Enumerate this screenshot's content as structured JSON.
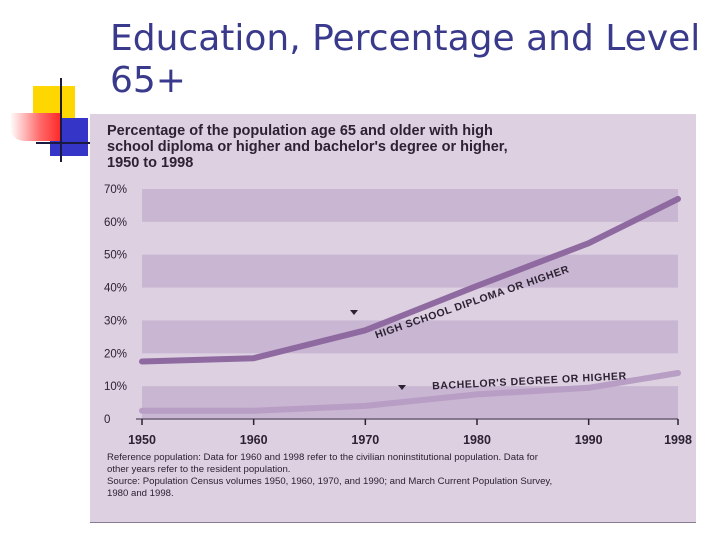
{
  "slide": {
    "title_line1": "Education, Percentage and Level",
    "title_line2": "65+"
  },
  "chart_data": {
    "type": "line",
    "title_lines": [
      "Percentage of the population age 65 and older with high",
      "school diploma or higher and bachelor's degree or higher,",
      "1950 to 1998"
    ],
    "x": [
      1950,
      1960,
      1970,
      1980,
      1990,
      1998
    ],
    "x_tick_labels": [
      "1950",
      "1960",
      "1970",
      "1980",
      "1990",
      "1998"
    ],
    "y_tick_values": [
      0,
      10,
      20,
      30,
      40,
      50,
      60,
      70
    ],
    "y_tick_labels": [
      "0",
      "10%",
      "20%",
      "30%",
      "40%",
      "50%",
      "60%",
      "70%"
    ],
    "ylim": [
      0,
      70
    ],
    "xlim": [
      1950,
      1998
    ],
    "series": [
      {
        "name": "HIGH SCHOOL DIPLOMA OR HIGHER",
        "x": [
          1950,
          1960,
          1970,
          1980,
          1990,
          1998
        ],
        "values": [
          17.5,
          18.5,
          27,
          40.5,
          53.5,
          67
        ],
        "color": "#8e6aa0"
      },
      {
        "name": "BACHELOR'S DEGREE OR HIGHER",
        "x": [
          1950,
          1960,
          1970,
          1980,
          1990,
          1998
        ],
        "values": [
          2.5,
          2.5,
          4,
          7.5,
          9.5,
          14
        ],
        "color": "#b89dc4"
      }
    ],
    "footnotes": [
      "Reference population: Data for 1960 and 1998 refer to the civilian noninstitutional population. Data for",
      "other years refer to the resident population.",
      "Source: Population Census volumes 1950, 1960, 1970, and 1990; and March Current Population Survey,",
      "1980 and 1998."
    ],
    "grid": "alternating-bands",
    "legend": "inline-labels"
  }
}
